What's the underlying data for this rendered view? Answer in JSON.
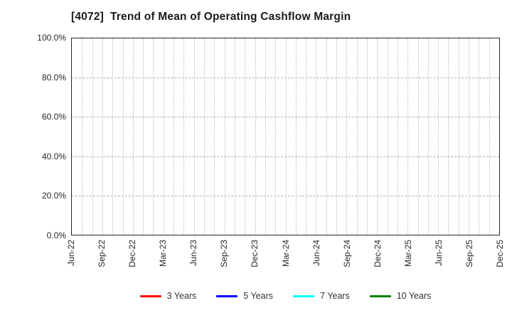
{
  "title": "[4072]  Trend of Mean of Operating Cashflow Margin",
  "chart_data": {
    "type": "line",
    "title": "[4072]  Trend of Mean of Operating Cashflow Margin",
    "xlabel": "",
    "ylabel": "",
    "x_tick_labels": [
      "Jun-22",
      "Sep-22",
      "Dec-22",
      "Mar-23",
      "Jun-23",
      "Sep-23",
      "Dec-23",
      "Mar-24",
      "Jun-24",
      "Sep-24",
      "Dec-24",
      "Mar-25",
      "Jun-25",
      "Sep-25",
      "Dec-25"
    ],
    "months_per_x_tick": 3,
    "y_ticks": [
      0,
      20,
      40,
      60,
      80,
      100
    ],
    "y_tick_labels": [
      "0.0%",
      "20.0%",
      "40.0%",
      "60.0%",
      "80.0%",
      "100.0%"
    ],
    "ylim": [
      0,
      100
    ],
    "grid": true,
    "minor_vertical_gridlines": "monthly",
    "legend_position": "bottom",
    "series": [
      {
        "name": "3 Years",
        "color": "#ff0000",
        "values": []
      },
      {
        "name": "5 Years",
        "color": "#0000ff",
        "values": []
      },
      {
        "name": "7 Years",
        "color": "#00ffff",
        "values": []
      },
      {
        "name": "10 Years",
        "color": "#008000",
        "values": []
      }
    ],
    "colors": {
      "plot_border": "#262626",
      "gridline": "#b0b0b0",
      "tick_label": "#262626",
      "title": "#1a1a1a"
    }
  }
}
